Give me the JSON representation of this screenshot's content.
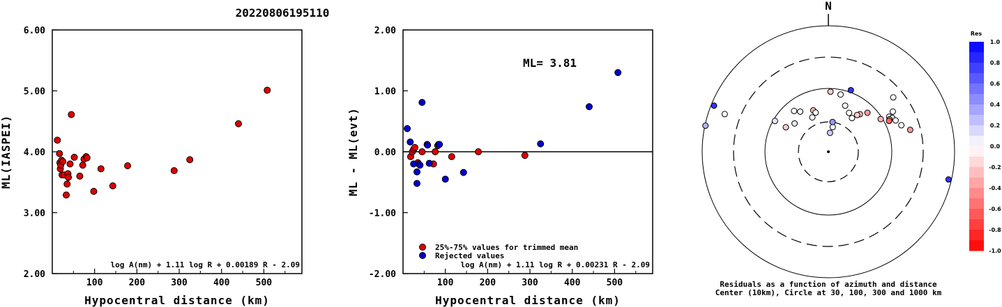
{
  "title": "20220806195110",
  "colors": {
    "trimmed": "#dd0000",
    "rejected": "#0000cc"
  },
  "chart_data": [
    {
      "type": "scatter",
      "xlabel": "Hypocentral distance (km)",
      "ylabel": "ML(IASPEI)",
      "xlim": [
        0,
        590
      ],
      "ylim": [
        2.0,
        6.0
      ],
      "xticks": [
        "100",
        "200",
        "300",
        "400",
        "500"
      ],
      "yticks": [
        "2.00",
        "3.00",
        "4.00",
        "5.00",
        "6.00"
      ],
      "formula": "log A(nm) + 1.11 log R + 0.00189 R - 2.09",
      "series": [
        {
          "color": "#dd0000",
          "points": [
            [
              12,
              4.19
            ],
            [
              17,
              3.97
            ],
            [
              18,
              3.82
            ],
            [
              19,
              3.72
            ],
            [
              20,
              3.78
            ],
            [
              22,
              3.86
            ],
            [
              23,
              3.62
            ],
            [
              25,
              3.84
            ],
            [
              28,
              3.62
            ],
            [
              33,
              3.29
            ],
            [
              35,
              3.47
            ],
            [
              37,
              3.64
            ],
            [
              38,
              3.58
            ],
            [
              42,
              3.8
            ],
            [
              45,
              4.61
            ],
            [
              52,
              3.91
            ],
            [
              65,
              3.6
            ],
            [
              72,
              3.78
            ],
            [
              75,
              3.88
            ],
            [
              80,
              3.92
            ],
            [
              82,
              3.9
            ],
            [
              98,
              3.35
            ],
            [
              115,
              3.72
            ],
            [
              143,
              3.44
            ],
            [
              178,
              3.77
            ],
            [
              288,
              3.69
            ],
            [
              325,
              3.87
            ],
            [
              440,
              4.46
            ],
            [
              508,
              5.01
            ]
          ]
        }
      ]
    },
    {
      "type": "scatter",
      "xlabel": "Hypocentral distance (km)",
      "ylabel": "ML - ML(evt)",
      "xlim": [
        0,
        590
      ],
      "ylim": [
        -2.0,
        2.0
      ],
      "xticks": [
        "100",
        "200",
        "300",
        "400",
        "500"
      ],
      "yticks": [
        "-2.00",
        "-1.00",
        "0.00",
        "1.00",
        "2.00"
      ],
      "annotation": "ML= 3.81",
      "formula": "log A(nm) + 1.11 log R + 0.00231 R - 2.09",
      "legend": [
        "25%-75% values for trimmed mean",
        "Rejected values"
      ],
      "series": [
        {
          "name": "25%-75% values for trimmed mean",
          "color": "#dd0000",
          "points": [
            [
              18,
              -0.08
            ],
            [
              22,
              0.0
            ],
            [
              25,
              0.04
            ],
            [
              28,
              0.07
            ],
            [
              35,
              -0.18
            ],
            [
              45,
              0.0
            ],
            [
              57,
              0.12
            ],
            [
              72,
              -0.2
            ],
            [
              76,
              0.0
            ],
            [
              82,
              0.1
            ],
            [
              115,
              -0.08
            ],
            [
              178,
              0.0
            ],
            [
              288,
              -0.06
            ]
          ]
        },
        {
          "name": "Rejected values",
          "color": "#0000cc",
          "points": [
            [
              10,
              0.38
            ],
            [
              17,
              0.16
            ],
            [
              25,
              -0.2
            ],
            [
              33,
              -0.33
            ],
            [
              33,
              -0.52
            ],
            [
              37,
              -0.2
            ],
            [
              40,
              -0.22
            ],
            [
              45,
              0.81
            ],
            [
              58,
              0.11
            ],
            [
              62,
              -0.19
            ],
            [
              84,
              0.12
            ],
            [
              86,
              0.12
            ],
            [
              100,
              -0.45
            ],
            [
              143,
              -0.34
            ],
            [
              325,
              0.13
            ],
            [
              440,
              0.74
            ],
            [
              508,
              1.3
            ]
          ]
        }
      ]
    },
    {
      "type": "scatter",
      "north_label": "N",
      "caption": [
        "Residuals as a function of azimuth and distance",
        "Center (10km), Circle at 30, 100, 300 and 1000 km"
      ],
      "colorbar": {
        "title": "Res",
        "ticks": [
          "1.0",
          "0.8",
          "0.6",
          "0.4",
          "0.2",
          "0.0",
          "-0.2",
          "-0.4",
          "-0.6",
          "-0.8",
          "-1.0"
        ]
      },
      "stations": [
        {
          "az": 292,
          "dist": 900,
          "res": 0.8
        },
        {
          "az": 290,
          "dist": 560,
          "res": 0.0
        },
        {
          "az": 282,
          "dist": 980,
          "res": 0.3
        },
        {
          "az": 2,
          "dist": 90,
          "res": -0.2
        },
        {
          "az": 12,
          "dist": 85,
          "res": 0.0
        },
        {
          "az": 300,
          "dist": 95,
          "res": 0.1
        },
        {
          "az": 320,
          "dist": 70,
          "res": 0.0
        },
        {
          "az": 325,
          "dist": 60,
          "res": 0.0
        },
        {
          "az": 335,
          "dist": 40,
          "res": 0.0
        },
        {
          "az": 340,
          "dist": 50,
          "res": -0.3
        },
        {
          "az": 342,
          "dist": 45,
          "res": 0.0
        },
        {
          "az": 40,
          "dist": 60,
          "res": -0.3
        },
        {
          "az": 45,
          "dist": 75,
          "res": -0.4
        },
        {
          "az": 58,
          "dist": 95,
          "res": -0.3
        },
        {
          "az": 300,
          "dist": 60,
          "res": -0.2
        },
        {
          "az": 310,
          "dist": 50,
          "res": 0.1
        },
        {
          "az": 20,
          "dist": 60,
          "res": 0.0
        },
        {
          "az": 20,
          "dist": 110,
          "res": 0.8
        },
        {
          "az": 10,
          "dist": 25,
          "res": 0.0
        },
        {
          "az": 8,
          "dist": 30,
          "res": 0.4
        },
        {
          "az": 5,
          "dist": 20,
          "res": 0.2
        },
        {
          "az": 60,
          "dist": 130,
          "res": 0.0
        },
        {
          "az": 62,
          "dist": 140,
          "res": 0.1
        },
        {
          "az": 65,
          "dist": 150,
          "res": 0.0
        },
        {
          "az": 70,
          "dist": 170,
          "res": 0.0
        },
        {
          "az": 75,
          "dist": 220,
          "res": -0.4
        },
        {
          "az": 58,
          "dist": 160,
          "res": 0.0
        },
        {
          "az": 38,
          "dist": 55,
          "res": -0.2
        },
        {
          "az": 50,
          "dist": 220,
          "res": 0.0
        },
        {
          "az": 103,
          "dist": 900,
          "res": 0.8
        },
        {
          "az": 62,
          "dist": 125,
          "res": -0.5
        },
        {
          "az": 63,
          "dist": 120,
          "res": -0.6
        },
        {
          "az": 28,
          "dist": 50,
          "res": 0.0
        },
        {
          "az": 35,
          "dist": 45,
          "res": 0.0
        }
      ]
    }
  ]
}
